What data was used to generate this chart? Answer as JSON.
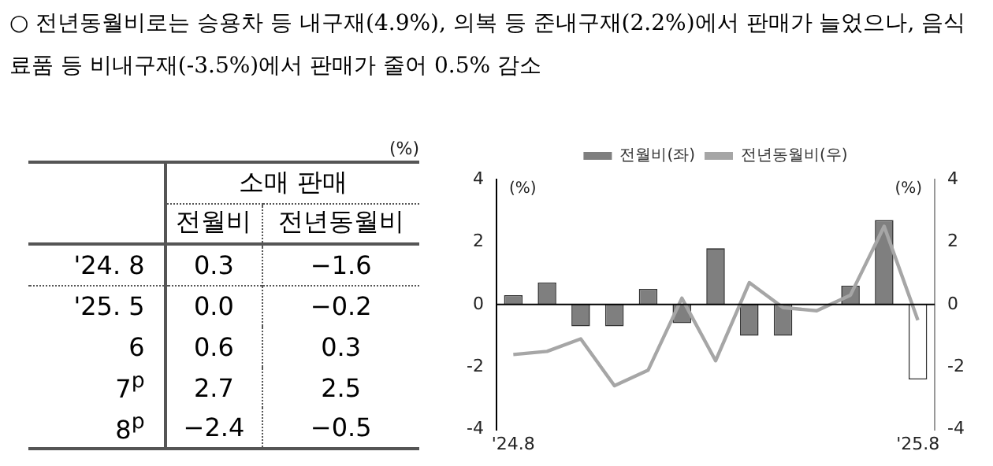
{
  "chart_data": {
    "type": "bar",
    "title": "○ 전년동월비로는 승용차 등 내구재(4.9%), 의복 등 준내구재(2.2%)에서 판매가 늘었으나, 음식료품 등 비내구재(-3.5%)에서 판매가 줄어 0.5% 감소",
    "categories": [
      "'24.8",
      null,
      null,
      null,
      null,
      null,
      null,
      null,
      null,
      null,
      null,
      null,
      "'25.8"
    ],
    "series": [
      {
        "name": "전월비(좌)",
        "type": "bar",
        "color": "#7f7f7f",
        "colors": [
          "#7f7f7f",
          "#7f7f7f",
          "#7f7f7f",
          "#7f7f7f",
          "#7f7f7f",
          "#7f7f7f",
          "#7f7f7f",
          "#7f7f7f",
          "#7f7f7f",
          "#7f7f7f",
          "#7f7f7f",
          "#7f7f7f",
          "#ffffff"
        ],
        "values": [
          0.3,
          0.7,
          -0.7,
          -0.7,
          0.5,
          -0.6,
          1.8,
          -1.0,
          -1.0,
          0.0,
          0.6,
          2.7,
          -2.4
        ]
      },
      {
        "name": "전년동월비(우)",
        "type": "line",
        "axis": "y2",
        "color": "#a6a6a6",
        "values": [
          -1.6,
          -1.5,
          -1.1,
          -2.6,
          -2.1,
          0.2,
          -1.8,
          0.7,
          -0.1,
          -0.2,
          0.3,
          2.5,
          -0.5
        ]
      }
    ],
    "ylabel": "(%)",
    "y2label": "(%)",
    "ylim": [
      -4,
      4
    ],
    "yticks": [
      -4,
      -2,
      0,
      2,
      4
    ],
    "y2lim": [
      -4,
      4
    ],
    "y2ticks": [
      -4,
      -2,
      0,
      2,
      4
    ],
    "ref_lines": [
      {
        "axis": "y",
        "value": 0,
        "color": "#000000"
      }
    ],
    "legend": "top",
    "grid": false,
    "annotations": [
      "(%)",
      "소매 판매",
      "전월비",
      "전년동월비",
      "'24. 8",
      "0.3",
      "−1.6",
      "'25. 5",
      "0.0",
      "−0.2",
      "6",
      "0.6",
      "0.3",
      "7$^{p}$",
      "2.7",
      "2.5",
      "8$^{p}$",
      "−2.4",
      "−0.5"
    ]
  }
}
